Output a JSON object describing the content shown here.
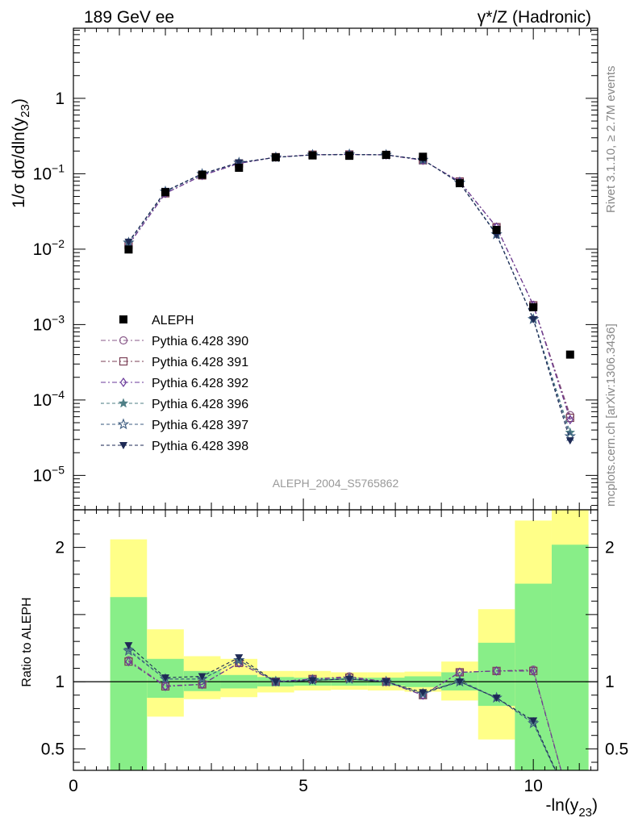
{
  "header": {
    "left_title": "189 GeV ee",
    "right_title_pre": "γ*/Z",
    "right_title_post": " (Hadronic)"
  },
  "side_labels": {
    "rivet": "Rivet 3.1.10, ≥ 2.7M events",
    "mcplots": "mcplots.cern.ch [arXiv:1306.3436]"
  },
  "analysis_label": "ALEPH_2004_S5765862",
  "axes": {
    "ylabel_main": "1/σ dσ/dln(y23)",
    "ylabel_ratio": "Ratio to ALEPH",
    "xlabel": "-ln(y23)"
  },
  "chart_data": [
    {
      "type": "line",
      "panel": "main",
      "yscale": "log",
      "xlim": [
        0,
        11.4
      ],
      "ylim": [
        3.5e-06,
        8.5
      ],
      "grid": false,
      "legend_position": "middle-left",
      "x_ticks": [
        0,
        5,
        10
      ],
      "y_ticks": [
        {
          "value": 1e-05,
          "base": "10",
          "exp": "−5"
        },
        {
          "value": 0.0001,
          "base": "10",
          "exp": "−4"
        },
        {
          "value": 0.001,
          "base": "10",
          "exp": "−3"
        },
        {
          "value": 0.01,
          "base": "10",
          "exp": "−2"
        },
        {
          "value": 0.1,
          "base": "10",
          "exp": "−1"
        },
        {
          "value": 1,
          "base": "1",
          "exp": ""
        }
      ],
      "data": {
        "name": "ALEPH",
        "x": [
          1.2,
          2.0,
          2.8,
          3.6,
          4.4,
          5.2,
          6.0,
          6.8,
          7.6,
          8.4,
          9.2,
          10.0,
          10.8
        ],
        "y": [
          0.0099,
          0.057,
          0.097,
          0.12,
          0.165,
          0.175,
          0.173,
          0.178,
          0.168,
          0.075,
          0.018,
          0.0017,
          0.0004
        ]
      },
      "series": [
        {
          "name": "Pythia 6.428 390",
          "marker": "circle",
          "color": "#8a5a8a",
          "dash": "6,3,2,3",
          "y": [
            0.0115,
            0.055,
            0.095,
            0.137,
            0.166,
            0.179,
            0.181,
            0.178,
            0.151,
            0.079,
            0.0197,
            0.00182,
            6.3e-05
          ]
        },
        {
          "name": "Pythia 6.428 391",
          "marker": "square",
          "color": "#7a3f55",
          "dash": "6,3,2,3",
          "y": [
            0.0114,
            0.055,
            0.095,
            0.137,
            0.166,
            0.179,
            0.18,
            0.178,
            0.151,
            0.079,
            0.0196,
            0.0018,
            5.8e-05
          ]
        },
        {
          "name": "Pythia 6.428 392",
          "marker": "diamond",
          "color": "#6a3a9a",
          "dash": "6,3,2,3",
          "y": [
            0.0114,
            0.055,
            0.095,
            0.137,
            0.166,
            0.179,
            0.18,
            0.178,
            0.151,
            0.079,
            0.0196,
            0.0018,
            5.5e-05
          ]
        },
        {
          "name": "Pythia 6.428 396",
          "marker": "star-filled",
          "color": "#4f7f86",
          "dash": "4,3",
          "y": [
            0.0123,
            0.058,
            0.099,
            0.14,
            0.165,
            0.178,
            0.18,
            0.178,
            0.153,
            0.076,
            0.0158,
            0.00119,
            3.7e-05
          ]
        },
        {
          "name": "Pythia 6.428 397",
          "marker": "star-open",
          "color": "#3d5c80",
          "dash": "4,3",
          "y": [
            0.0122,
            0.058,
            0.099,
            0.14,
            0.165,
            0.178,
            0.18,
            0.178,
            0.153,
            0.076,
            0.0157,
            0.00118,
            3.3e-05
          ]
        },
        {
          "name": "Pythia 6.428 398",
          "marker": "triangle-down",
          "color": "#1e2a55",
          "dash": "4,3",
          "y": [
            0.0125,
            0.059,
            0.1,
            0.141,
            0.165,
            0.178,
            0.18,
            0.178,
            0.154,
            0.075,
            0.0155,
            0.00117,
            2.9e-05
          ]
        }
      ]
    },
    {
      "type": "line",
      "panel": "ratio",
      "ylim": [
        0.34,
        2.28
      ],
      "xlim": [
        0,
        11.4
      ],
      "reference_line": 1,
      "x_ticks": [
        0,
        5,
        10
      ],
      "y_ticks": [
        0.5,
        1,
        2
      ],
      "bands": {
        "x_edges": [
          0.8,
          1.6,
          2.4,
          3.2,
          4.0,
          4.8,
          5.6,
          6.4,
          7.2,
          8.0,
          8.8,
          9.6,
          10.4,
          11.2
        ],
        "yellow_lo": [
          0.43,
          0.74,
          0.87,
          0.885,
          0.92,
          0.935,
          0.94,
          0.935,
          0.925,
          0.86,
          0.57,
          0.34,
          0.34
        ],
        "yellow_hi": [
          2.06,
          1.39,
          1.19,
          1.17,
          1.08,
          1.08,
          1.07,
          1.07,
          1.075,
          1.15,
          1.54,
          2.2,
          2.28
        ],
        "green_lo": [
          0.34,
          0.88,
          0.93,
          0.95,
          0.965,
          0.97,
          0.97,
          0.97,
          0.96,
          0.935,
          0.82,
          0.34,
          0.34
        ],
        "green_hi": [
          1.63,
          1.17,
          1.08,
          1.05,
          1.035,
          1.03,
          1.03,
          1.03,
          1.04,
          1.07,
          1.29,
          1.73,
          2.02
        ]
      },
      "series": [
        {
          "name": "Pythia 6.428 390",
          "y": [
            1.16,
            0.97,
            0.98,
            1.14,
            1.0,
            1.02,
            1.04,
            1.0,
            0.9,
            1.07,
            1.08,
            1.09,
            0.1
          ]
        },
        {
          "name": "Pythia 6.428 391",
          "y": [
            1.15,
            0.965,
            0.98,
            1.14,
            1.0,
            1.02,
            1.03,
            1.0,
            0.9,
            1.07,
            1.08,
            1.08,
            0.1
          ]
        },
        {
          "name": "Pythia 6.428 392",
          "y": [
            1.15,
            0.965,
            0.98,
            1.14,
            1.0,
            1.02,
            1.03,
            1.0,
            0.9,
            1.07,
            1.08,
            1.08,
            0.1
          ]
        },
        {
          "name": "Pythia 6.428 396",
          "y": [
            1.24,
            1.02,
            1.02,
            1.16,
            1.0,
            1.01,
            1.02,
            1.0,
            0.91,
            1.01,
            0.88,
            0.7,
            0.1
          ]
        },
        {
          "name": "Pythia 6.428 397",
          "y": [
            1.23,
            1.02,
            1.02,
            1.16,
            1.0,
            1.01,
            1.02,
            1.0,
            0.91,
            1.0,
            0.88,
            0.69,
            0.1
          ]
        },
        {
          "name": "Pythia 6.428 398",
          "y": [
            1.27,
            1.03,
            1.04,
            1.18,
            1.0,
            1.01,
            1.02,
            1.0,
            0.92,
            1.0,
            0.88,
            0.71,
            0.1
          ]
        }
      ]
    }
  ]
}
